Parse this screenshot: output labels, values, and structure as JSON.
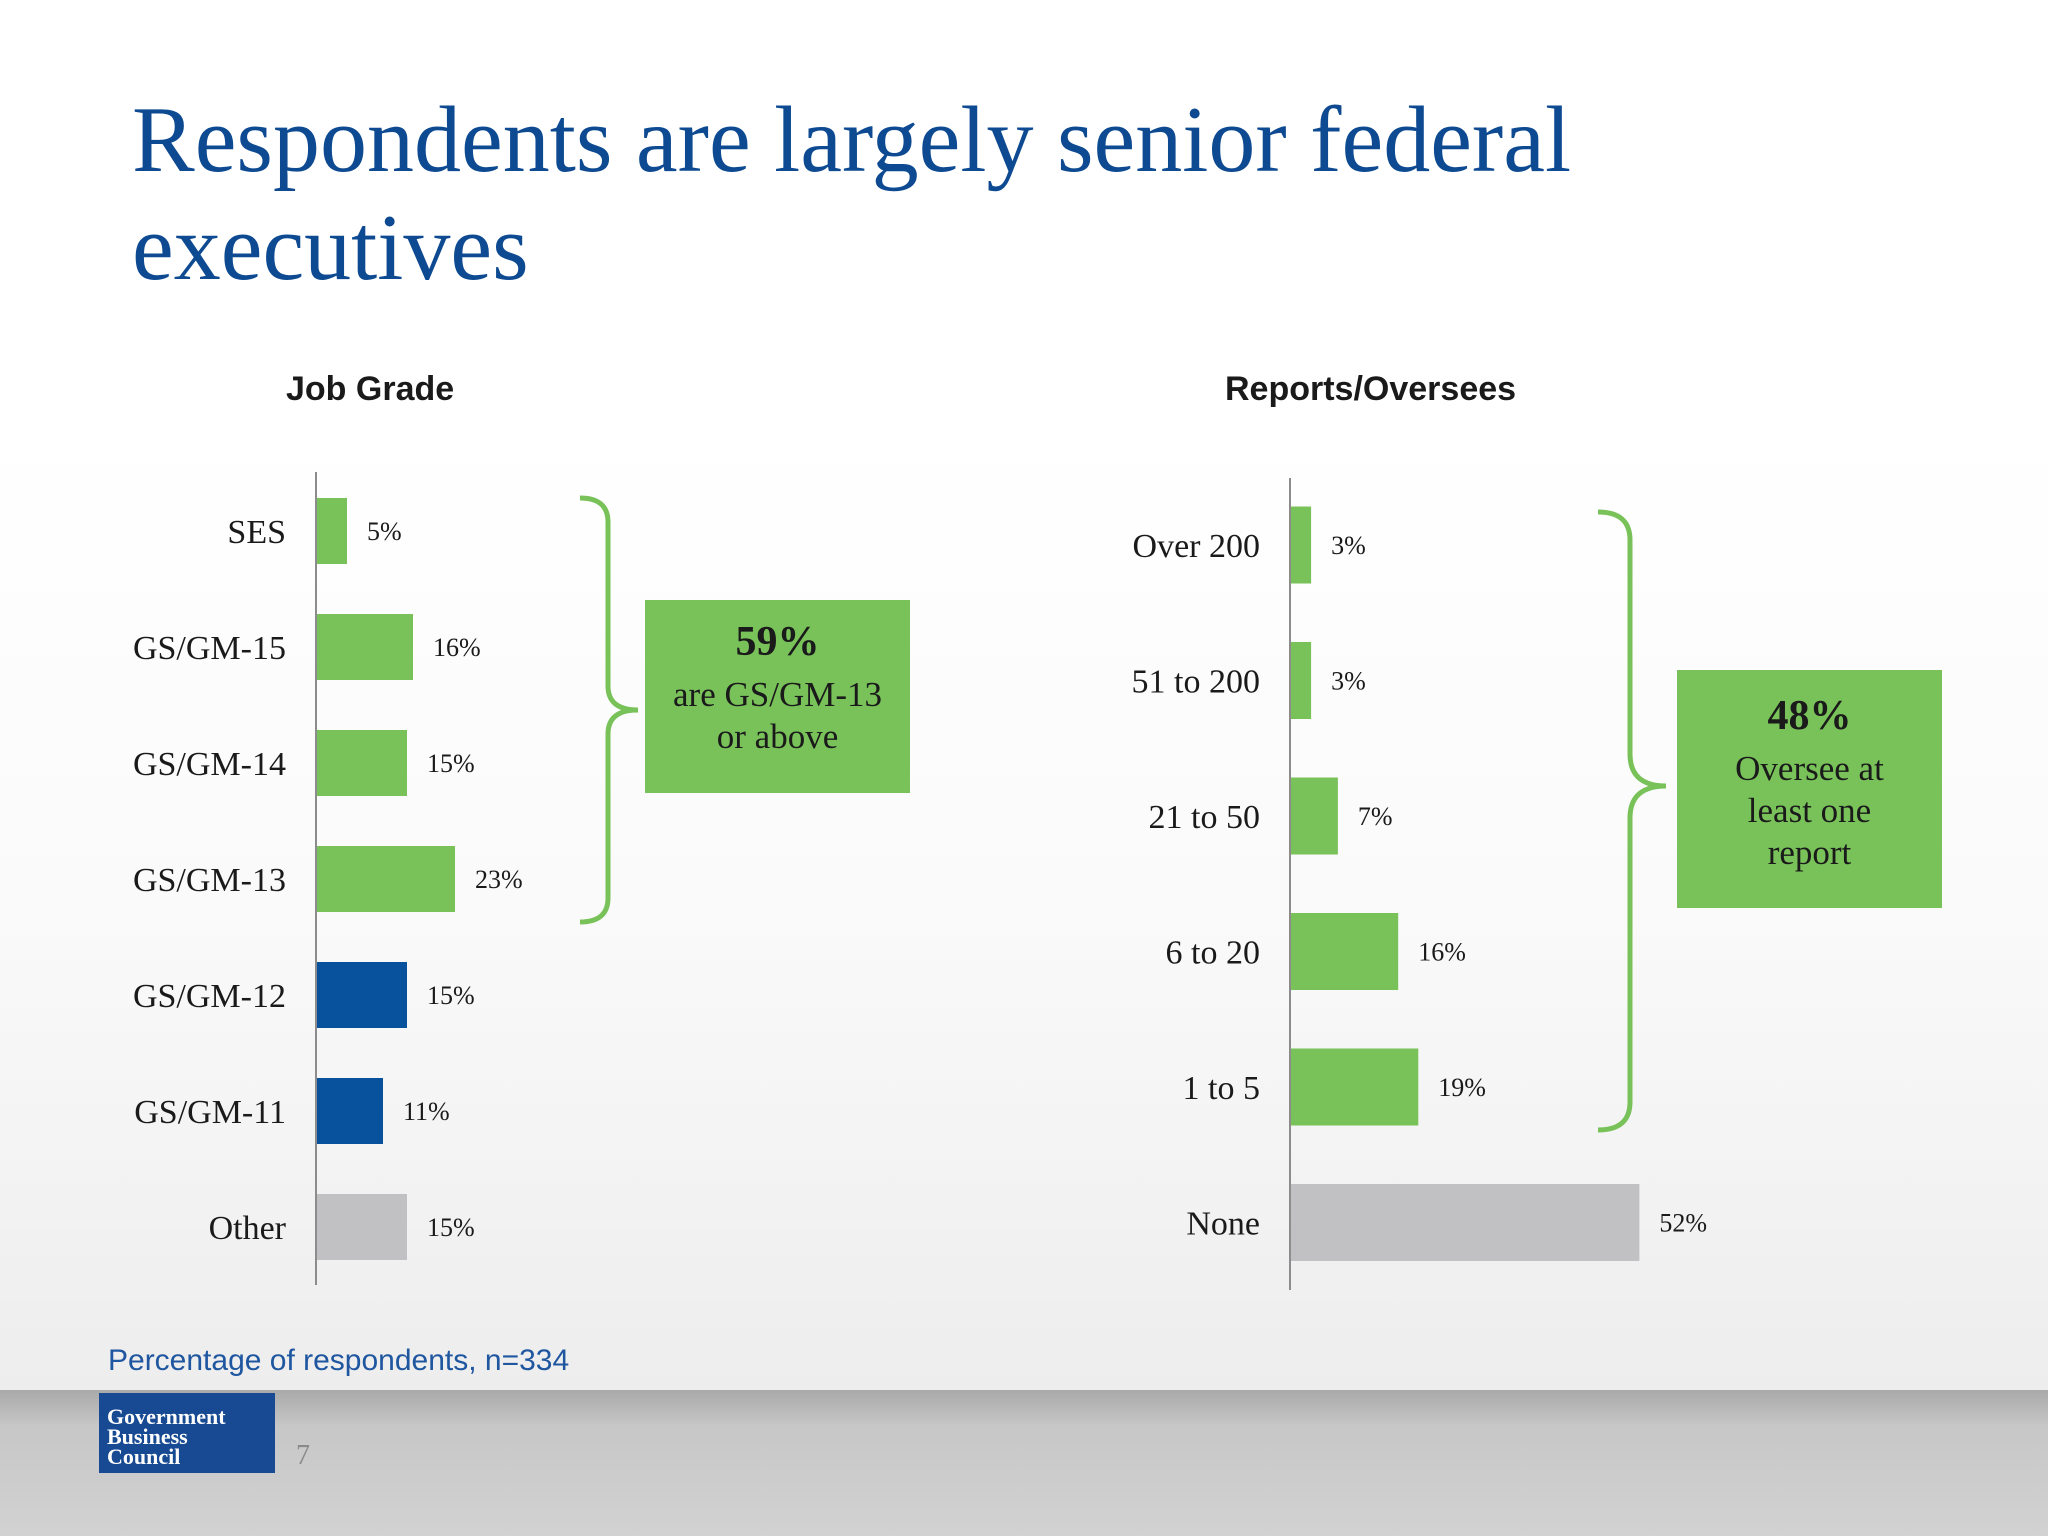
{
  "title": "Respondents are largely senior federal executives",
  "colors": {
    "green": "#79c25a",
    "blue": "#08519c",
    "gray": "#c1c0c3",
    "title_blue": "#0d4a91",
    "brace": "#79c25a"
  },
  "chart_data": [
    {
      "type": "bar",
      "orientation": "horizontal",
      "title": "Job Grade",
      "categories": [
        "SES",
        "GS/GM-15",
        "GS/GM-14",
        "GS/GM-13",
        "GS/GM-12",
        "GS/GM-11",
        "Other"
      ],
      "values": [
        5,
        16,
        15,
        23,
        15,
        11,
        15
      ],
      "value_labels": [
        "5%",
        "16%",
        "15%",
        "23%",
        "15%",
        "11%",
        "15%"
      ],
      "bar_colors": [
        "green",
        "green",
        "green",
        "green",
        "blue",
        "blue",
        "gray"
      ],
      "xlim": [
        0,
        60
      ],
      "unit": "%"
    },
    {
      "type": "bar",
      "orientation": "horizontal",
      "title": "Reports/Oversees",
      "categories": [
        "Over 200",
        "51 to 200",
        "21 to 50",
        "6 to 20",
        "1 to 5",
        "None"
      ],
      "values": [
        3,
        3,
        7,
        16,
        19,
        52
      ],
      "value_labels": [
        "3%",
        "3%",
        "7%",
        "16%",
        "19%",
        "52%"
      ],
      "bar_colors": [
        "green",
        "green",
        "green",
        "green",
        "green",
        "gray"
      ],
      "xlim": [
        0,
        60
      ],
      "unit": "%"
    }
  ],
  "callouts": [
    {
      "pct": "59%",
      "line1": "are GS/GM-13",
      "line2": "or above"
    },
    {
      "pct": "48%",
      "line1": "Oversee at",
      "line2": "least one",
      "line3": "report"
    }
  ],
  "note": "Percentage of respondents, n=334",
  "footer": {
    "logo_line1": "Government",
    "logo_line2": "Business",
    "logo_line3": "Council",
    "page_number": "7"
  }
}
